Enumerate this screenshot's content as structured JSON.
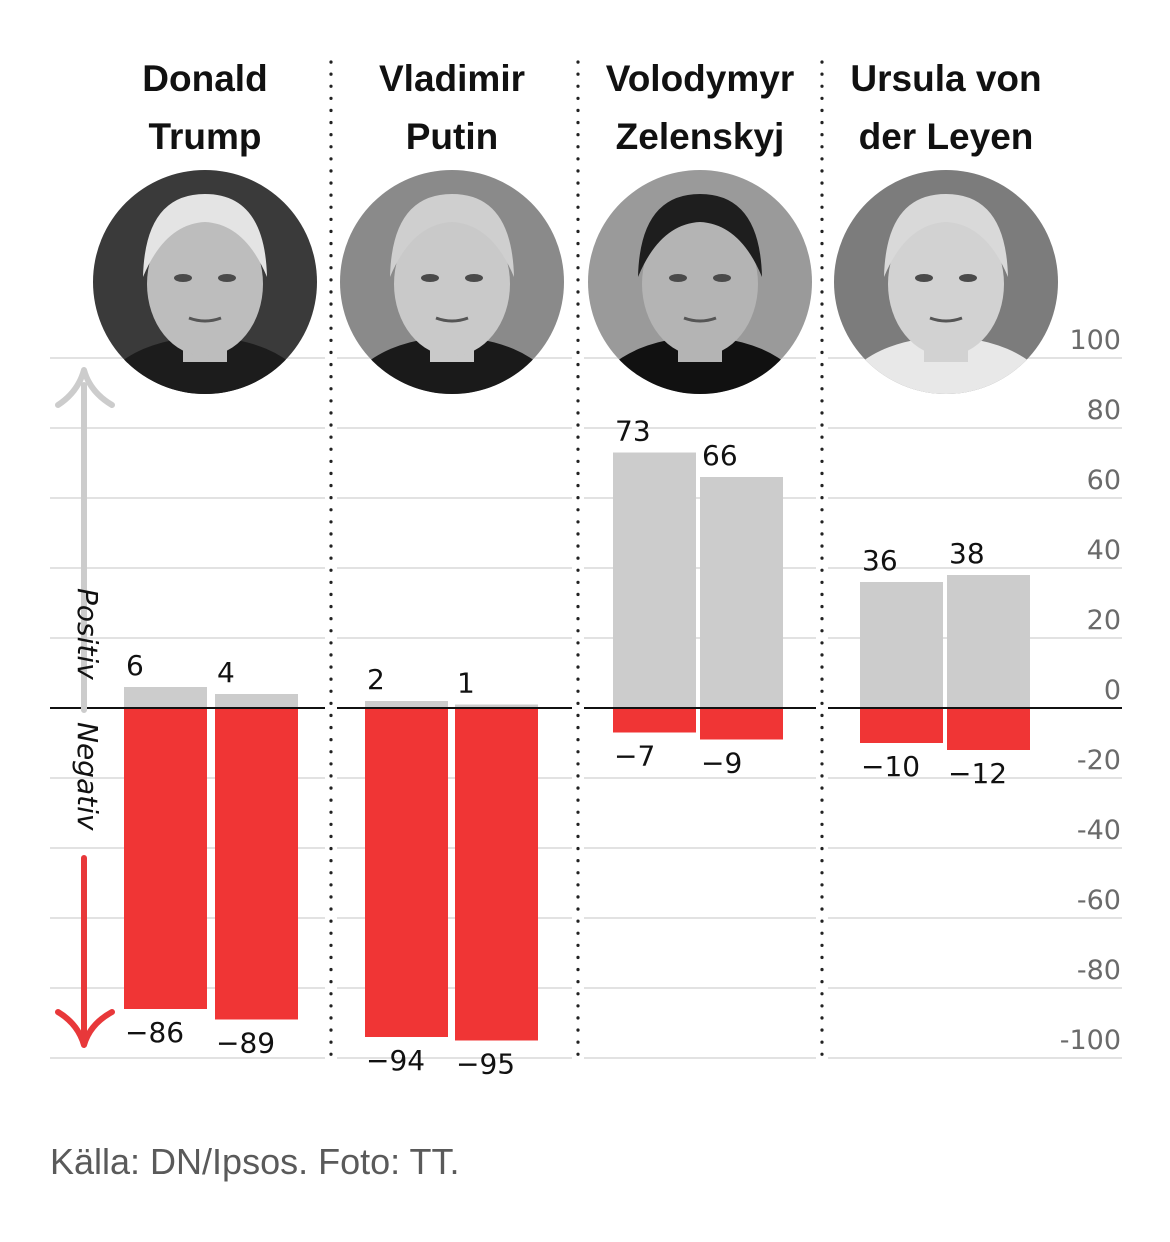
{
  "chart_data": {
    "type": "bar",
    "title": "",
    "xlabel": "",
    "ylabel": "",
    "ylim": [
      -100,
      100
    ],
    "yticks": [
      "100",
      "80",
      "60",
      "40",
      "20",
      "0",
      "-20",
      "-40",
      "-60",
      "-80",
      "-100"
    ],
    "ytick_values": [
      100,
      80,
      60,
      40,
      20,
      0,
      -20,
      -40,
      -60,
      -80,
      -100
    ],
    "grid": true,
    "direction_labels": {
      "positive": "Positiv",
      "negative": "Negativ"
    },
    "colors": {
      "positive": "#cccccc",
      "negative": "#f03535",
      "zero_line": "#111111",
      "grid": "#e2e2e2",
      "up_arrow": "#cccccc",
      "down_arrow": "#e8383a"
    },
    "groups": [
      {
        "name_lines": [
          "Donald",
          "Trump"
        ],
        "photo": "portrait-donald-trump",
        "bars": [
          {
            "positive": 6,
            "negative": -86,
            "positive_label": "6",
            "negative_label": "−86"
          },
          {
            "positive": 4,
            "negative": -89,
            "positive_label": "4",
            "negative_label": "−89"
          }
        ]
      },
      {
        "name_lines": [
          "Vladimir",
          "Putin"
        ],
        "photo": "portrait-vladimir-putin",
        "bars": [
          {
            "positive": 2,
            "negative": -94,
            "positive_label": "2",
            "negative_label": "−94"
          },
          {
            "positive": 1,
            "negative": -95,
            "positive_label": "1",
            "negative_label": "−95"
          }
        ]
      },
      {
        "name_lines": [
          "Volodymyr",
          "Zelenskyj"
        ],
        "photo": "portrait-volodymyr-zelenskyj",
        "bars": [
          {
            "positive": 73,
            "negative": -7,
            "positive_label": "73",
            "negative_label": "−7"
          },
          {
            "positive": 66,
            "negative": -9,
            "positive_label": "66",
            "negative_label": "−9"
          }
        ]
      },
      {
        "name_lines": [
          "Ursula von",
          "der Leyen"
        ],
        "photo": "portrait-ursula-von-der-leyen",
        "bars": [
          {
            "positive": 36,
            "negative": -10,
            "positive_label": "36",
            "negative_label": "−10"
          },
          {
            "positive": 38,
            "negative": -12,
            "positive_label": "38",
            "negative_label": "−12"
          }
        ]
      }
    ]
  },
  "footer": {
    "source": "Källa: DN/Ipsos. Foto: TT."
  }
}
